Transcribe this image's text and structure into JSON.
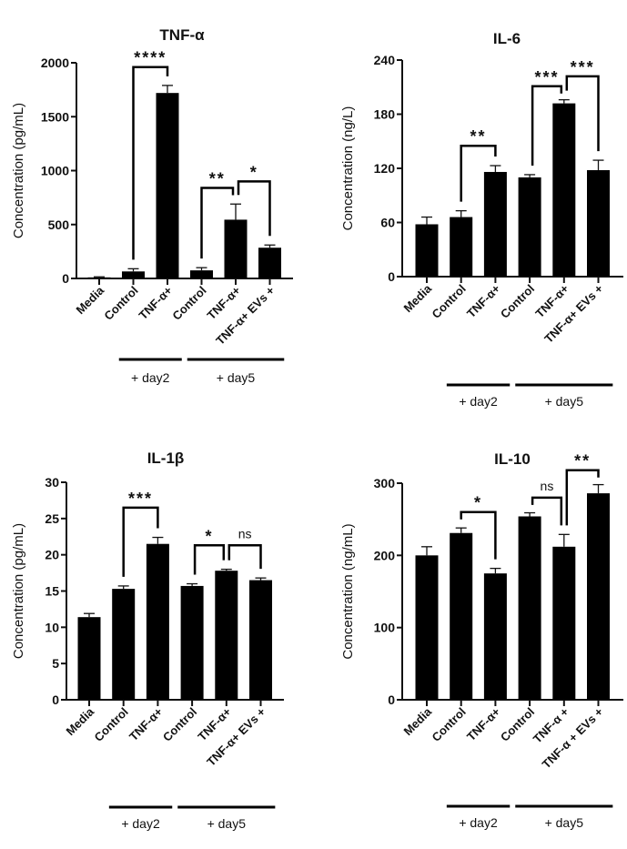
{
  "chart_data": [
    {
      "type": "bar",
      "title": "TNF-α",
      "xlabel": "",
      "ylabel": "Concentration (pg/mL)",
      "ylim": [
        0,
        2000
      ],
      "yticks": [
        0,
        500,
        1000,
        1500,
        2000
      ],
      "categories": [
        "Media",
        "Control",
        "TNF-α+",
        "Control",
        "TNF-α+",
        "TNF-α+ EVs +"
      ],
      "values": [
        10,
        65,
        1720,
        75,
        545,
        285
      ],
      "errors": [
        5,
        25,
        70,
        25,
        145,
        25
      ],
      "groups": [
        {
          "label": "+ day2",
          "from": 1,
          "to": 2
        },
        {
          "label": "+ day5",
          "from": 3,
          "to": 5
        }
      ],
      "significance": [
        {
          "from": 1,
          "to": 2,
          "label": "****",
          "level": 1960
        },
        {
          "from": 3,
          "to": 4,
          "label": "**",
          "level": 840
        },
        {
          "from": 4,
          "to": 5,
          "label": "*",
          "level": 900
        }
      ]
    },
    {
      "type": "bar",
      "title": "IL-6",
      "xlabel": "",
      "ylabel": "Concentration (ng/L)",
      "ylim": [
        0,
        240
      ],
      "yticks": [
        0,
        60,
        120,
        180,
        240
      ],
      "categories": [
        "Media",
        "Control",
        "TNF-α+",
        "Control",
        "TNF-α+",
        "TNF-α+ EVs +"
      ],
      "values": [
        58,
        66,
        116,
        110,
        192,
        118
      ],
      "errors": [
        8,
        7,
        7,
        3,
        4,
        11
      ],
      "groups": [
        {
          "label": "+ day2",
          "from": 1,
          "to": 2
        },
        {
          "label": "+ day5",
          "from": 3,
          "to": 5
        }
      ],
      "significance": [
        {
          "from": 1,
          "to": 2,
          "label": "**",
          "level": 145
        },
        {
          "from": 3,
          "to": 4,
          "label": "***",
          "level": 211
        },
        {
          "from": 4,
          "to": 5,
          "label": "***",
          "level": 222
        }
      ]
    },
    {
      "type": "bar",
      "title": "IL-1β",
      "xlabel": "",
      "ylabel": "Concentration (pg/mL)",
      "ylim": [
        0,
        30
      ],
      "yticks": [
        0,
        5,
        10,
        15,
        20,
        25,
        30
      ],
      "categories": [
        "Media",
        "Control",
        "TNF-α+",
        "Control",
        "TNF-α+",
        "TNF-α+ EVs +"
      ],
      "values": [
        11.4,
        15.3,
        21.5,
        15.7,
        17.8,
        16.5
      ],
      "errors": [
        0.5,
        0.4,
        0.9,
        0.3,
        0.2,
        0.3
      ],
      "groups": [
        {
          "label": "+ day2",
          "from": 1,
          "to": 2
        },
        {
          "label": "+ day5",
          "from": 3,
          "to": 5
        }
      ],
      "significance": [
        {
          "from": 1,
          "to": 2,
          "label": "***",
          "level": 26.5
        },
        {
          "from": 3,
          "to": 4,
          "label": "*",
          "level": 21.3
        },
        {
          "from": 4,
          "to": 5,
          "label": "ns",
          "level": 21.3
        }
      ]
    },
    {
      "type": "bar",
      "title": "IL-10",
      "xlabel": "",
      "ylabel": "Concentration (ng/mL)",
      "ylim": [
        0,
        300
      ],
      "yticks": [
        0,
        100,
        200,
        300
      ],
      "categories": [
        "Media",
        "Control",
        "TNF-α+",
        "Control",
        "TNF-α +",
        "TNF-α + EVs +"
      ],
      "values": [
        200,
        231,
        175,
        254,
        212,
        286
      ],
      "errors": [
        12,
        7,
        7,
        5,
        17,
        12
      ],
      "groups": [
        {
          "label": "+ day2",
          "from": 1,
          "to": 2
        },
        {
          "label": "+ day5",
          "from": 3,
          "to": 5
        }
      ],
      "significance": [
        {
          "from": 1,
          "to": 2,
          "label": "*",
          "level": 260
        },
        {
          "from": 3,
          "to": 4,
          "label": "ns",
          "level": 280
        },
        {
          "from": 4,
          "to": 5,
          "label": "**",
          "level": 318
        }
      ]
    }
  ],
  "colors": {
    "bar": "#000000",
    "axis": "#111111",
    "error": "#111111"
  }
}
